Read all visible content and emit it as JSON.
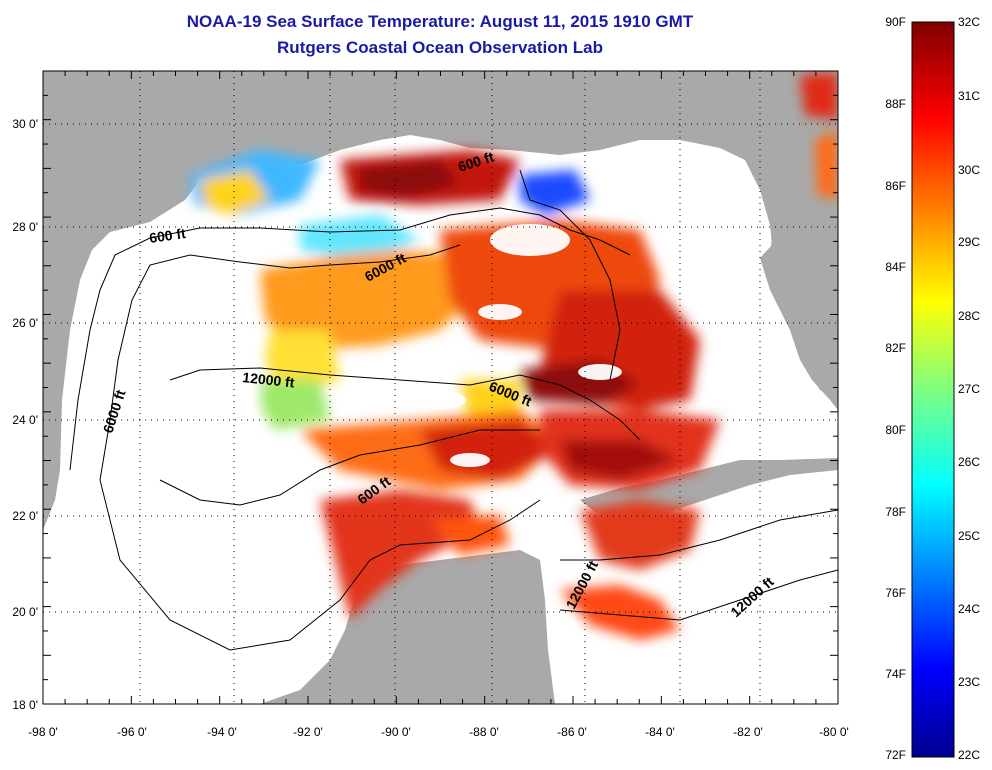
{
  "title": {
    "line1": "NOAA-19 Sea Surface Temperature:  August 11, 2015 1910 GMT",
    "line2": "Rutgers Coastal Ocean Observation Lab"
  },
  "map": {
    "lon_labels": [
      "-98 0'",
      "-96 0'",
      "-94 0'",
      "-92 0'",
      "-90 0'",
      "-88 0'",
      "-86 0'",
      "-84 0'",
      "-82 0'",
      "-80 0'"
    ],
    "lat_labels": [
      "30 0'",
      "28 0'",
      "26 0'",
      "24 0'",
      "22 0'",
      "20 0'",
      "18 0'"
    ],
    "contour_labels": [
      "600 ft",
      "600 ft",
      "6000 ft",
      "12000 ft",
      "6000 ft",
      "6000 ft",
      "600 ft",
      "12000 ft",
      "12000 ft"
    ]
  },
  "colorbar": {
    "fahrenheit": [
      "90F",
      "88F",
      "86F",
      "84F",
      "82F",
      "80F",
      "78F",
      "76F",
      "74F",
      "72F"
    ],
    "celsius": [
      "32C",
      "31C",
      "30C",
      "29C",
      "28C",
      "27C",
      "26C",
      "25C",
      "24C",
      "23C",
      "22C"
    ]
  },
  "colors": {
    "title": "#1a1aa6",
    "land": "#a9a9a9",
    "water_nodata": "#ffffff"
  }
}
